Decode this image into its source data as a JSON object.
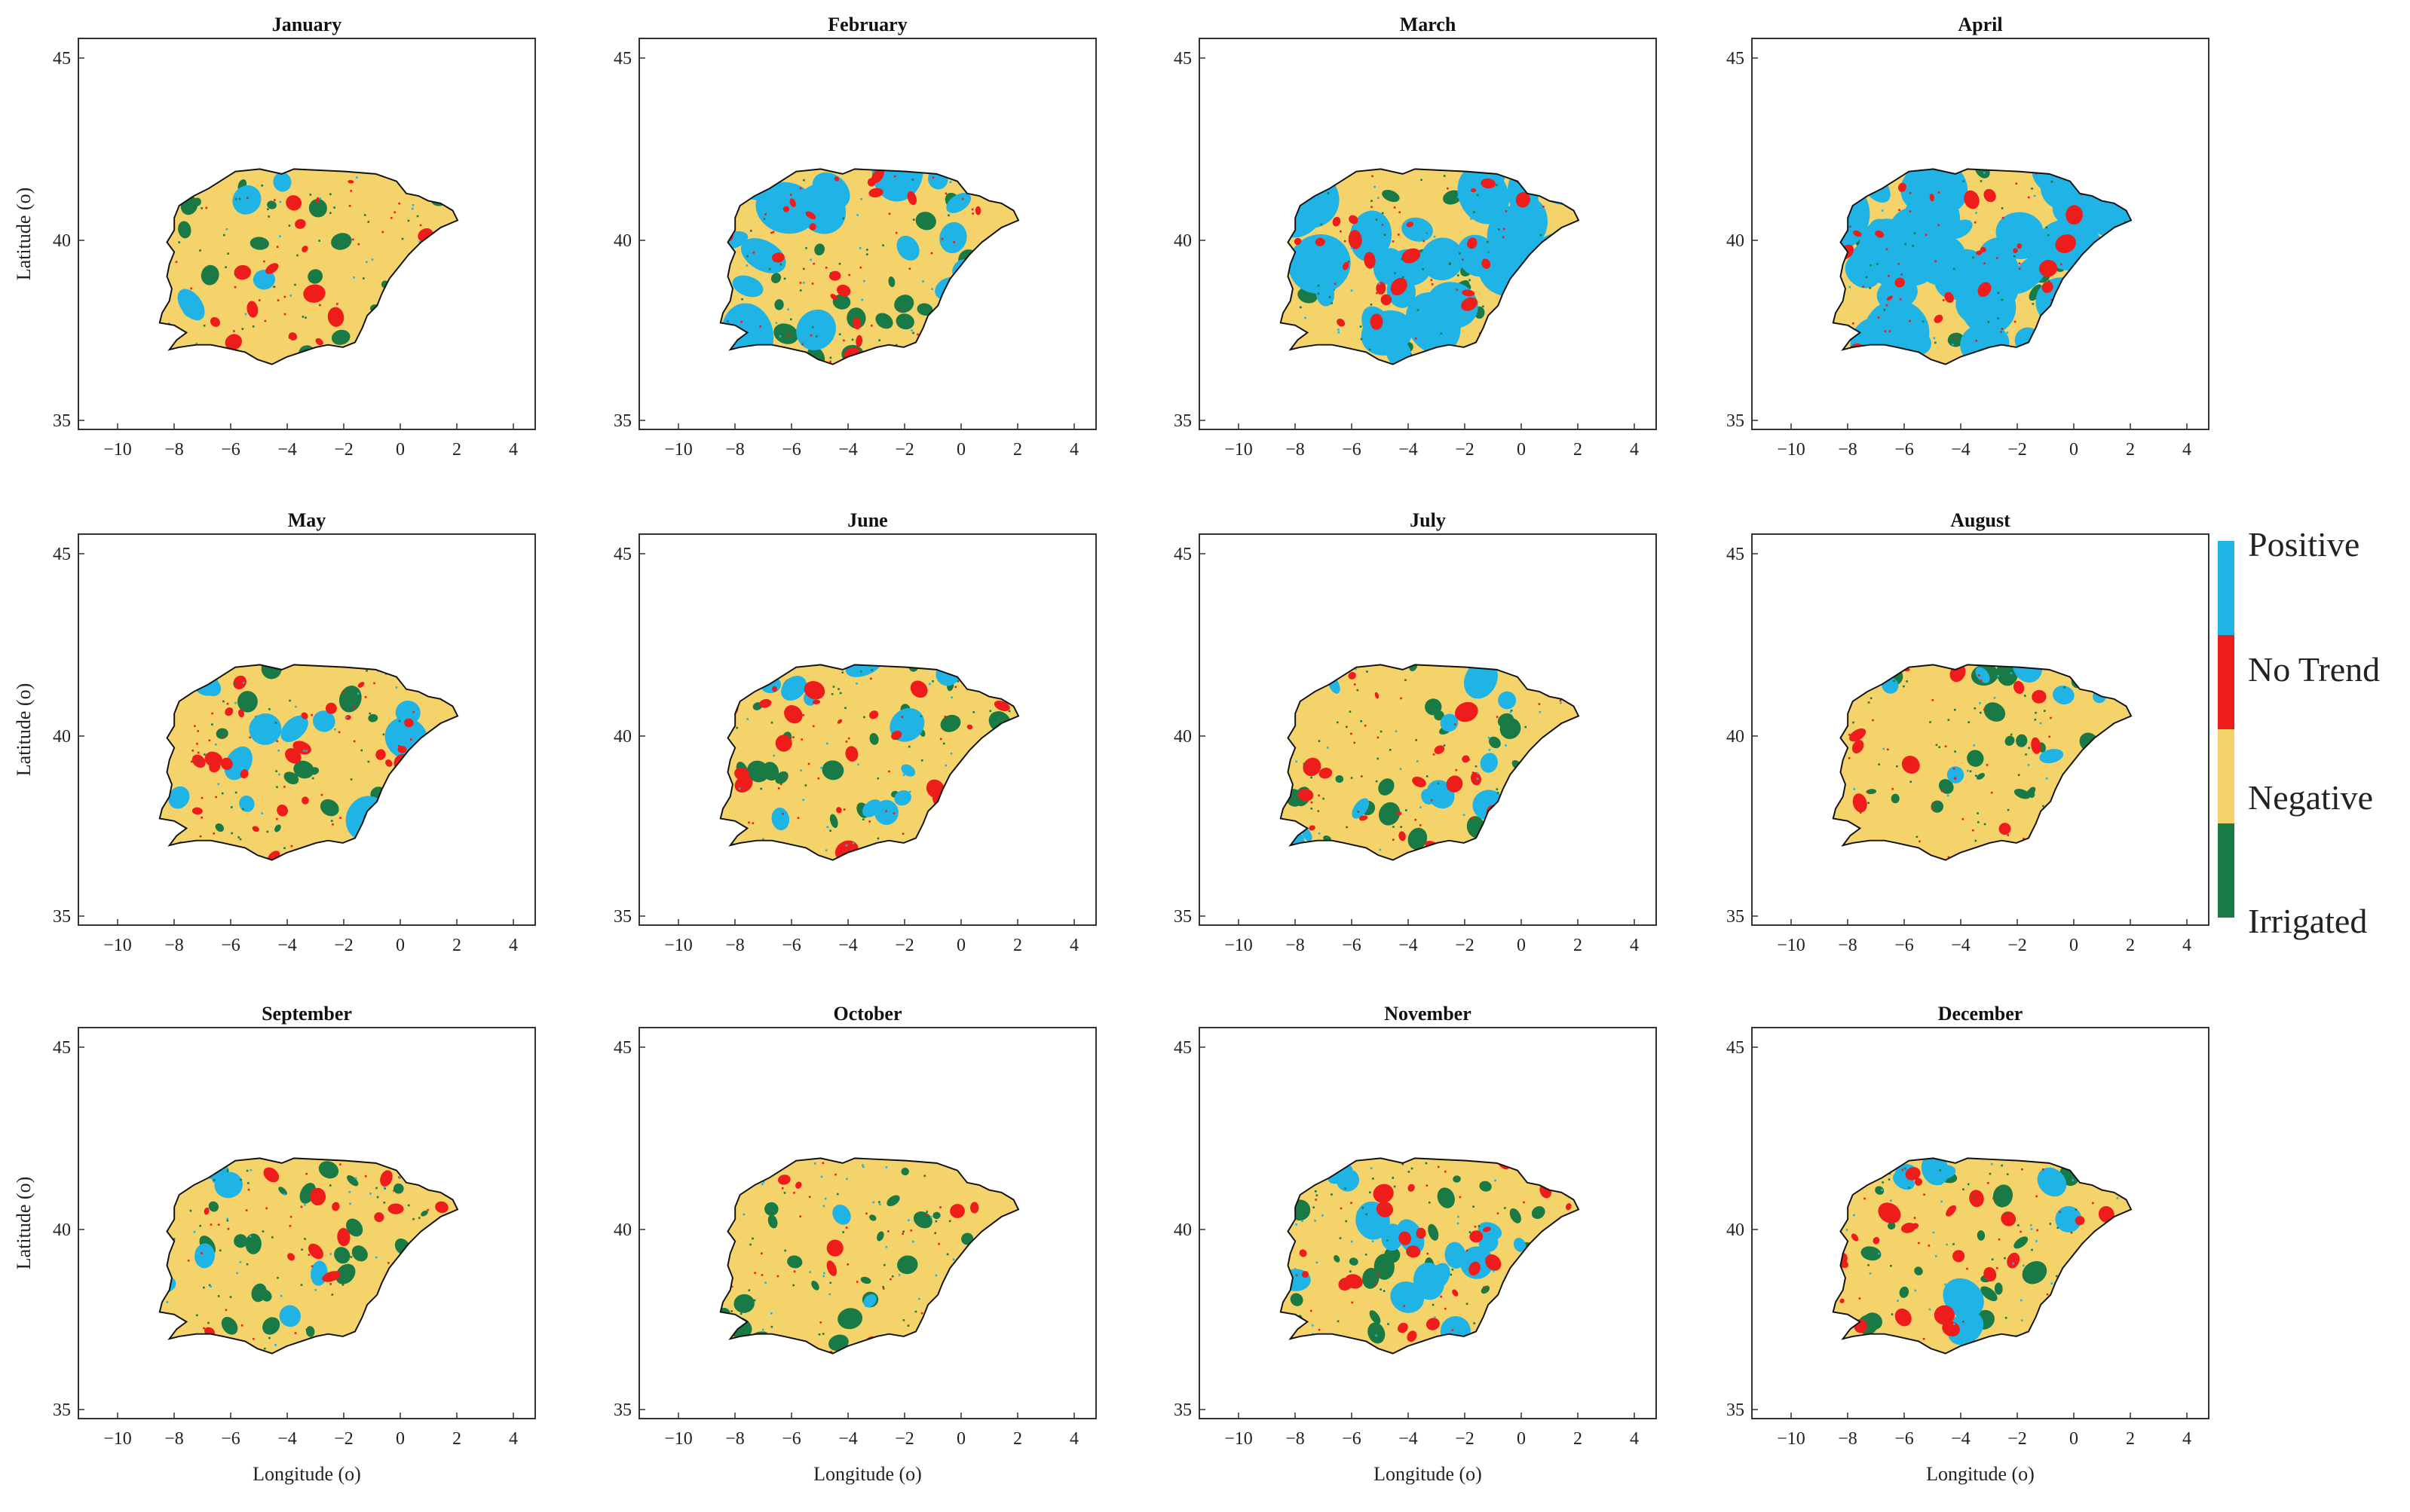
{
  "figure": {
    "panels": [
      {
        "month": "January"
      },
      {
        "month": "February"
      },
      {
        "month": "March"
      },
      {
        "month": "April"
      },
      {
        "month": "May"
      },
      {
        "month": "June"
      },
      {
        "month": "July"
      },
      {
        "month": "August"
      },
      {
        "month": "September"
      },
      {
        "month": "October"
      },
      {
        "month": "November"
      },
      {
        "month": "December"
      }
    ],
    "x_axis": {
      "label": "Longitude (o)",
      "ticks": [
        "−10",
        "−8",
        "−6",
        "−4",
        "−2",
        "0",
        "2",
        "4"
      ]
    },
    "y_axis": {
      "label": "Latitude (o)",
      "ticks": [
        "45",
        "40",
        "35"
      ]
    },
    "legend": {
      "placement": "right",
      "items": [
        {
          "label": "Positive",
          "color": "#1fb3e6"
        },
        {
          "label": "No Trend",
          "color": "#ef1c1c"
        },
        {
          "label": "Negative",
          "color": "#f5d36b"
        },
        {
          "label": "Irrigated",
          "color": "#197a45"
        }
      ]
    },
    "colors": {
      "coastline": "#111111",
      "axes": "#333333"
    }
  }
}
